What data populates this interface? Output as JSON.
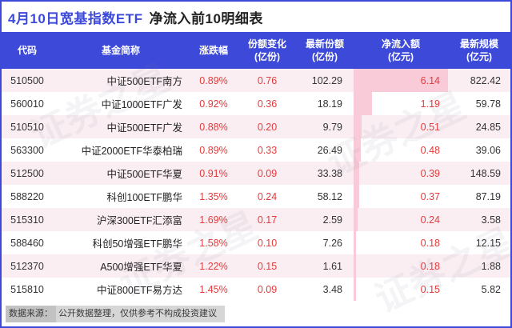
{
  "title": {
    "part1": "4月10日宽基指数ETF",
    "part2": "净流入前10明细表"
  },
  "colors": {
    "header_bg": "#3D4AD9",
    "title_blue": "#3D4AD9",
    "positive_red": "#E33B3B",
    "bar_pink": "#F9CBD8",
    "row_alt_pink": "#FBEEF3",
    "frame_border": "#3D4AD9",
    "footer_gray": "#D6D6D6"
  },
  "watermark": {
    "text": "证券之星"
  },
  "table": {
    "headers": [
      {
        "key": "code",
        "title": "代码"
      },
      {
        "key": "name",
        "title": "基金简称"
      },
      {
        "key": "change",
        "title": "涨跌幅"
      },
      {
        "key": "share-change",
        "title": "份额变化",
        "sub": "(亿份)"
      },
      {
        "key": "latest-share",
        "title": "最新份额",
        "sub": "(亿份)"
      },
      {
        "key": "net-inflow",
        "title": "净流入额",
        "sub": "(亿元)"
      },
      {
        "key": "scale",
        "title": "最新规模",
        "sub": "(亿元)"
      }
    ],
    "rows": [
      {
        "code": "510500",
        "name": "中证500ETF南方",
        "chg": "0.89%",
        "share_chg": "0.76",
        "latest_share": "102.29",
        "inflow": "6.14",
        "scale": "822.42"
      },
      {
        "code": "560010",
        "name": "中证1000ETF广发",
        "chg": "0.92%",
        "share_chg": "0.36",
        "latest_share": "18.19",
        "inflow": "1.19",
        "scale": "59.78"
      },
      {
        "code": "510510",
        "name": "中证500ETF广发",
        "chg": "0.88%",
        "share_chg": "0.20",
        "latest_share": "9.79",
        "inflow": "0.51",
        "scale": "24.85"
      },
      {
        "code": "563300",
        "name": "中证2000ETF华泰柏瑞",
        "chg": "0.89%",
        "share_chg": "0.33",
        "latest_share": "26.49",
        "inflow": "0.48",
        "scale": "39.06"
      },
      {
        "code": "512500",
        "name": "中证500ETF华夏",
        "chg": "0.91%",
        "share_chg": "0.09",
        "latest_share": "33.38",
        "inflow": "0.39",
        "scale": "148.59"
      },
      {
        "code": "588220",
        "name": "科创100ETF鹏华",
        "chg": "1.35%",
        "share_chg": "0.24",
        "latest_share": "58.12",
        "inflow": "0.37",
        "scale": "87.19"
      },
      {
        "code": "515310",
        "name": "沪深300ETF汇添富",
        "chg": "1.69%",
        "share_chg": "0.17",
        "latest_share": "2.59",
        "inflow": "0.24",
        "scale": "3.58"
      },
      {
        "code": "588460",
        "name": "科创50增强ETF鹏华",
        "chg": "1.58%",
        "share_chg": "0.10",
        "latest_share": "7.26",
        "inflow": "0.18",
        "scale": "12.15"
      },
      {
        "code": "512370",
        "name": "A500增强ETF华夏",
        "chg": "1.22%",
        "share_chg": "0.15",
        "latest_share": "1.61",
        "inflow": "0.18",
        "scale": "1.88"
      },
      {
        "code": "515810",
        "name": "中证800ETF易方达",
        "chg": "1.45%",
        "share_chg": "0.09",
        "latest_share": "3.48",
        "inflow": "0.15",
        "scale": "5.82"
      }
    ]
  },
  "footer": {
    "label": "数据来源：",
    "rest": "公开数据整理，仅供参考不构成投资建议"
  },
  "chart_data": {
    "type": "table",
    "title": "4月10日宽基指数ETF 净流入前10明细表",
    "columns": [
      "代码",
      "基金简称",
      "涨跌幅",
      "份额变化(亿份)",
      "最新份额(亿份)",
      "净流入额(亿元)",
      "最新规模(亿元)"
    ],
    "rows": [
      [
        "510500",
        "中证500ETF南方",
        "0.89%",
        0.76,
        102.29,
        6.14,
        822.42
      ],
      [
        "560010",
        "中证1000ETF广发",
        "0.92%",
        0.36,
        18.19,
        1.19,
        59.78
      ],
      [
        "510510",
        "中证500ETF广发",
        "0.88%",
        0.2,
        9.79,
        0.51,
        24.85
      ],
      [
        "563300",
        "中证2000ETF华泰柏瑞",
        "0.89%",
        0.33,
        26.49,
        0.48,
        39.06
      ],
      [
        "512500",
        "中证500ETF华夏",
        "0.91%",
        0.09,
        33.38,
        0.39,
        148.59
      ],
      [
        "588220",
        "科创100ETF鹏华",
        "1.35%",
        0.24,
        58.12,
        0.37,
        87.19
      ],
      [
        "515310",
        "沪深300ETF汇添富",
        "1.69%",
        0.17,
        2.59,
        0.24,
        3.58
      ],
      [
        "588460",
        "科创50增强ETF鹏华",
        "1.58%",
        0.1,
        7.26,
        0.18,
        12.15
      ],
      [
        "512370",
        "A500增强ETF华夏",
        "1.22%",
        0.15,
        1.61,
        0.18,
        1.88
      ],
      [
        "515810",
        "中证800ETF易方达",
        "1.45%",
        0.09,
        3.48,
        0.15,
        5.82
      ]
    ],
    "bar_column": "净流入额(亿元)",
    "bar_max": 6.14,
    "bar_color": "#F9CBD8"
  }
}
